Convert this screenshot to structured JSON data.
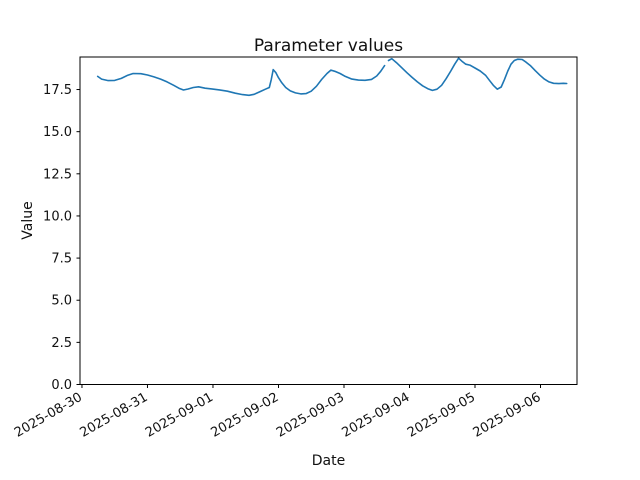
{
  "figure": {
    "title": "Parameter values",
    "xlabel": "Date",
    "ylabel": "Value"
  },
  "chart_data": {
    "type": "line",
    "title": "Parameter values",
    "xlabel": "Date",
    "ylabel": "Value",
    "grid": false,
    "legend": null,
    "line_color": "#1f77b4",
    "x_unit": "days since 2025-08-30 00:00",
    "x_tick_labels": [
      "2025-08-30",
      "2025-08-31",
      "2025-09-01",
      "2025-09-02",
      "2025-09-03",
      "2025-09-04",
      "2025-09-05",
      "2025-09-06"
    ],
    "x_tick_days": [
      0,
      1,
      2,
      3,
      4,
      5,
      6,
      7
    ],
    "y_ticks": [
      0.0,
      2.5,
      5.0,
      7.5,
      10.0,
      12.5,
      15.0,
      17.5
    ],
    "xlim_days": [
      -0.03,
      7.557
    ],
    "ylim": [
      0,
      19.43
    ],
    "series": [
      {
        "name": "parameter-values",
        "color": "#1f77b4",
        "segments": [
          [
            [
              0.24,
              18.28
            ],
            [
              0.3,
              18.12
            ],
            [
              0.4,
              18.03
            ],
            [
              0.5,
              18.04
            ],
            [
              0.6,
              18.16
            ],
            [
              0.7,
              18.35
            ],
            [
              0.78,
              18.45
            ],
            [
              0.9,
              18.44
            ],
            [
              1.0,
              18.36
            ],
            [
              1.1,
              18.25
            ],
            [
              1.2,
              18.12
            ],
            [
              1.3,
              17.95
            ],
            [
              1.4,
              17.75
            ],
            [
              1.48,
              17.58
            ],
            [
              1.55,
              17.47
            ],
            [
              1.62,
              17.53
            ],
            [
              1.7,
              17.62
            ],
            [
              1.78,
              17.66
            ],
            [
              1.88,
              17.58
            ],
            [
              1.98,
              17.54
            ],
            [
              2.1,
              17.48
            ],
            [
              2.22,
              17.4
            ],
            [
              2.34,
              17.28
            ],
            [
              2.45,
              17.2
            ],
            [
              2.55,
              17.16
            ],
            [
              2.63,
              17.22
            ],
            [
              2.72,
              17.38
            ],
            [
              2.8,
              17.52
            ],
            [
              2.86,
              17.62
            ],
            [
              2.89,
              18.1
            ],
            [
              2.92,
              18.68
            ],
            [
              2.96,
              18.5
            ],
            [
              3.0,
              18.2
            ],
            [
              3.05,
              17.9
            ],
            [
              3.11,
              17.62
            ],
            [
              3.18,
              17.42
            ],
            [
              3.26,
              17.3
            ],
            [
              3.34,
              17.24
            ],
            [
              3.42,
              17.26
            ],
            [
              3.5,
              17.4
            ],
            [
              3.58,
              17.7
            ],
            [
              3.66,
              18.1
            ],
            [
              3.74,
              18.45
            ],
            [
              3.8,
              18.65
            ],
            [
              3.86,
              18.58
            ],
            [
              3.94,
              18.45
            ],
            [
              4.02,
              18.28
            ],
            [
              4.12,
              18.12
            ],
            [
              4.22,
              18.06
            ],
            [
              4.32,
              18.05
            ],
            [
              4.42,
              18.1
            ],
            [
              4.5,
              18.3
            ],
            [
              4.56,
              18.58
            ],
            [
              4.62,
              18.92
            ]
          ],
          [
            [
              4.68,
              19.22
            ],
            [
              4.73,
              19.33
            ],
            [
              4.8,
              19.1
            ],
            [
              4.88,
              18.8
            ],
            [
              4.96,
              18.5
            ],
            [
              5.04,
              18.22
            ],
            [
              5.12,
              17.95
            ],
            [
              5.2,
              17.72
            ],
            [
              5.28,
              17.55
            ],
            [
              5.35,
              17.45
            ],
            [
              5.42,
              17.52
            ],
            [
              5.49,
              17.75
            ],
            [
              5.56,
              18.15
            ],
            [
              5.63,
              18.6
            ],
            [
              5.69,
              19.0
            ],
            [
              5.75,
              19.36
            ],
            [
              5.8,
              19.18
            ],
            [
              5.86,
              19.0
            ],
            [
              5.92,
              18.95
            ],
            [
              6.0,
              18.78
            ],
            [
              6.08,
              18.6
            ],
            [
              6.16,
              18.35
            ],
            [
              6.22,
              18.05
            ],
            [
              6.28,
              17.75
            ],
            [
              6.34,
              17.52
            ],
            [
              6.4,
              17.65
            ],
            [
              6.45,
              18.1
            ],
            [
              6.5,
              18.6
            ],
            [
              6.55,
              19.0
            ],
            [
              6.6,
              19.22
            ],
            [
              6.65,
              19.3
            ],
            [
              6.72,
              19.28
            ],
            [
              6.78,
              19.12
            ],
            [
              6.85,
              18.9
            ],
            [
              6.92,
              18.62
            ],
            [
              6.99,
              18.35
            ],
            [
              7.06,
              18.12
            ],
            [
              7.13,
              17.95
            ],
            [
              7.2,
              17.87
            ],
            [
              7.28,
              17.85
            ],
            [
              7.35,
              17.87
            ],
            [
              7.4,
              17.86
            ]
          ]
        ]
      }
    ]
  },
  "colors": {
    "line": "#1f77b4",
    "text": "#111111",
    "spine": "#000000",
    "background": "#ffffff"
  }
}
